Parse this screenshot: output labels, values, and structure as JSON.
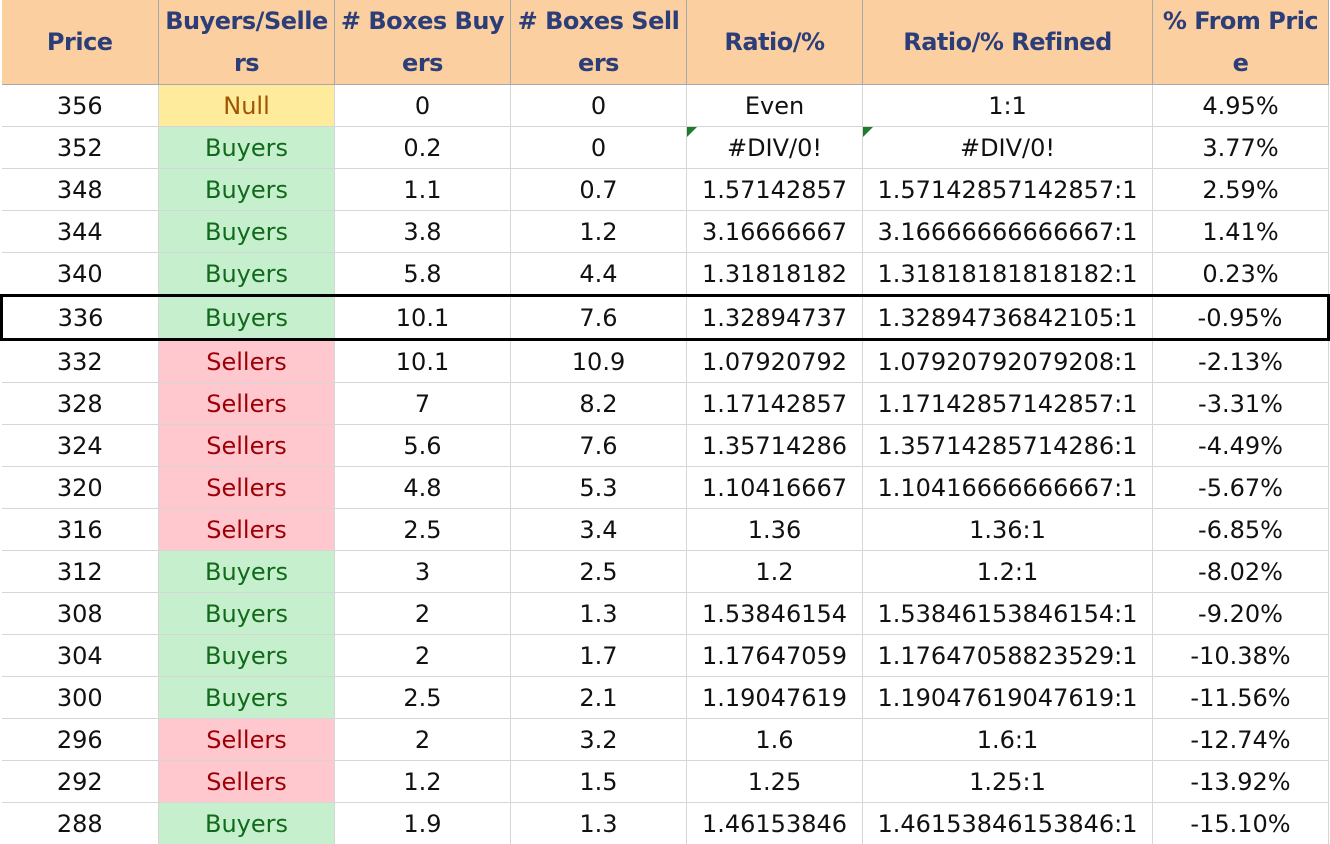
{
  "headers": {
    "price": "Price",
    "buyers_sellers": "Buyers/Sellers",
    "boxes_buyers": "# Boxes Buyers",
    "boxes_sellers": "# Boxes Sellers",
    "ratio": "Ratio/%",
    "ratio_refined": "Ratio/% Refined",
    "pct_from_price": "% From Price"
  },
  "colors": {
    "header_bg": "#fbcf9f",
    "header_text": "#2c3e79",
    "buyers_bg": "#c6efce",
    "buyers_text": "#106a1a",
    "sellers_bg": "#ffc7ce",
    "sellers_text": "#9c0006",
    "null_bg": "#ffeb9c",
    "null_text": "#9c5700"
  },
  "rows": [
    {
      "price": "356",
      "side": "Null",
      "boxes_buyers": "0",
      "boxes_sellers": "0",
      "ratio": "Even",
      "ratio_refined": "1:1",
      "pct": "4.95%"
    },
    {
      "price": "352",
      "side": "Buyers",
      "boxes_buyers": "0.2",
      "boxes_sellers": "0",
      "ratio": "#DIV/0!",
      "ratio_refined": "#DIV/0!",
      "pct": "3.77%"
    },
    {
      "price": "348",
      "side": "Buyers",
      "boxes_buyers": "1.1",
      "boxes_sellers": "0.7",
      "ratio": "1.57142857",
      "ratio_refined": "1.57142857142857:1",
      "pct": "2.59%"
    },
    {
      "price": "344",
      "side": "Buyers",
      "boxes_buyers": "3.8",
      "boxes_sellers": "1.2",
      "ratio": "3.16666667",
      "ratio_refined": "3.16666666666667:1",
      "pct": "1.41%"
    },
    {
      "price": "340",
      "side": "Buyers",
      "boxes_buyers": "5.8",
      "boxes_sellers": "4.4",
      "ratio": "1.31818182",
      "ratio_refined": "1.31818181818182:1",
      "pct": "0.23%"
    },
    {
      "price": "336",
      "side": "Buyers",
      "boxes_buyers": "10.1",
      "boxes_sellers": "7.6",
      "ratio": "1.32894737",
      "ratio_refined": "1.32894736842105:1",
      "pct": "-0.95%"
    },
    {
      "price": "332",
      "side": "Sellers",
      "boxes_buyers": "10.1",
      "boxes_sellers": "10.9",
      "ratio": "1.07920792",
      "ratio_refined": "1.07920792079208:1",
      "pct": "-2.13%"
    },
    {
      "price": "328",
      "side": "Sellers",
      "boxes_buyers": "7",
      "boxes_sellers": "8.2",
      "ratio": "1.17142857",
      "ratio_refined": "1.17142857142857:1",
      "pct": "-3.31%"
    },
    {
      "price": "324",
      "side": "Sellers",
      "boxes_buyers": "5.6",
      "boxes_sellers": "7.6",
      "ratio": "1.35714286",
      "ratio_refined": "1.35714285714286:1",
      "pct": "-4.49%"
    },
    {
      "price": "320",
      "side": "Sellers",
      "boxes_buyers": "4.8",
      "boxes_sellers": "5.3",
      "ratio": "1.10416667",
      "ratio_refined": "1.10416666666667:1",
      "pct": "-5.67%"
    },
    {
      "price": "316",
      "side": "Sellers",
      "boxes_buyers": "2.5",
      "boxes_sellers": "3.4",
      "ratio": "1.36",
      "ratio_refined": "1.36:1",
      "pct": "-6.85%"
    },
    {
      "price": "312",
      "side": "Buyers",
      "boxes_buyers": "3",
      "boxes_sellers": "2.5",
      "ratio": "1.2",
      "ratio_refined": "1.2:1",
      "pct": "-8.02%"
    },
    {
      "price": "308",
      "side": "Buyers",
      "boxes_buyers": "2",
      "boxes_sellers": "1.3",
      "ratio": "1.53846154",
      "ratio_refined": "1.53846153846154:1",
      "pct": "-9.20%"
    },
    {
      "price": "304",
      "side": "Buyers",
      "boxes_buyers": "2",
      "boxes_sellers": "1.7",
      "ratio": "1.17647059",
      "ratio_refined": "1.17647058823529:1",
      "pct": "-10.38%"
    },
    {
      "price": "300",
      "side": "Buyers",
      "boxes_buyers": "2.5",
      "boxes_sellers": "2.1",
      "ratio": "1.19047619",
      "ratio_refined": "1.19047619047619:1",
      "pct": "-11.56%"
    },
    {
      "price": "296",
      "side": "Sellers",
      "boxes_buyers": "2",
      "boxes_sellers": "3.2",
      "ratio": "1.6",
      "ratio_refined": "1.6:1",
      "pct": "-12.74%"
    },
    {
      "price": "292",
      "side": "Sellers",
      "boxes_buyers": "1.2",
      "boxes_sellers": "1.5",
      "ratio": "1.25",
      "ratio_refined": "1.25:1",
      "pct": "-13.92%"
    },
    {
      "price": "288",
      "side": "Buyers",
      "boxes_buyers": "1.9",
      "boxes_sellers": "1.3",
      "ratio": "1.46153846",
      "ratio_refined": "1.46153846153846:1",
      "pct": "-15.10%"
    }
  ]
}
